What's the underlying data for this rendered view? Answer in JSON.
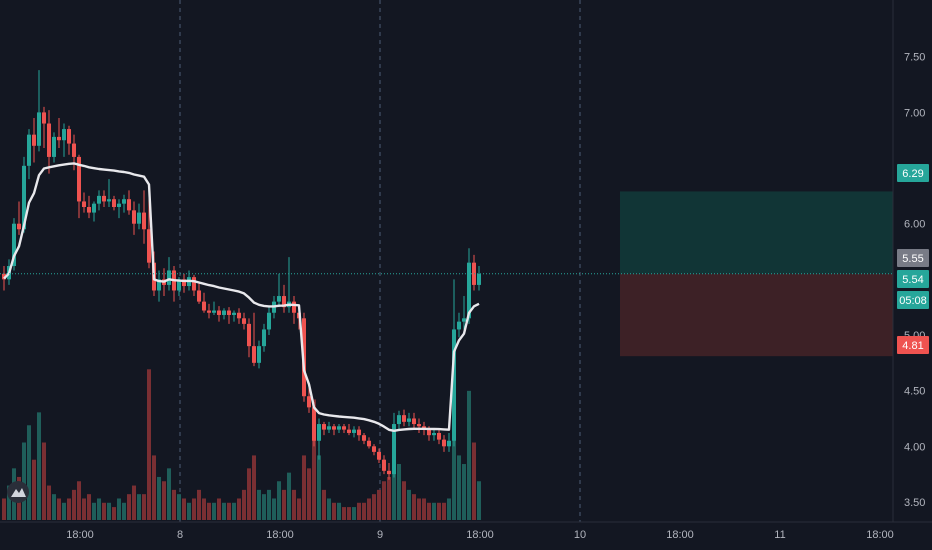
{
  "chart_data": {
    "type": "candlestick",
    "title": "",
    "xlabel": "",
    "ylabel": "",
    "ylim": [
      3.32,
      7.92
    ],
    "y_ticks": [
      "7.50",
      "7.00",
      "6.50",
      "6.00",
      "5.50",
      "5.00",
      "4.50",
      "4.00",
      "3.50"
    ],
    "x_ticks": [
      {
        "label": "18:00",
        "session": 0.5
      },
      {
        "label": "8",
        "session": 1
      },
      {
        "label": "18:00",
        "session": 1.5
      },
      {
        "label": "9",
        "session": 2
      },
      {
        "label": "18:00",
        "session": 2.5
      },
      {
        "label": "10",
        "session": 3
      },
      {
        "label": "18:00",
        "session": 3.5
      },
      {
        "label": "11",
        "session": 4
      },
      {
        "label": "18:00",
        "session": 4.5
      }
    ],
    "day_separators": [
      1,
      2,
      3
    ],
    "price_tags": [
      {
        "label": "6.29",
        "value": 6.29,
        "color": "#26a69a"
      },
      {
        "label": "5.55",
        "value": 5.55,
        "color": "#787b86"
      },
      {
        "label": "5.54",
        "value": 5.54,
        "color": "#26a69a"
      },
      {
        "label": "05:08",
        "value": 5.31,
        "color": "#26a69a"
      },
      {
        "label": "4.81",
        "value": 4.81,
        "color": "#ef5350"
      }
    ],
    "position": {
      "entry": 5.55,
      "target": 6.29,
      "stop": 4.81,
      "start_session": 3.2
    },
    "last_price": 5.55,
    "colors": {
      "up": "#26a69a",
      "down": "#ef5350",
      "vwap": "#e8e8ec",
      "background": "#131722",
      "grid": "#363a45",
      "last_price_line": "#26a69a"
    },
    "candles": [
      [
        5.55,
        5.62,
        5.4,
        5.5,
        10
      ],
      [
        5.5,
        5.68,
        5.45,
        5.62,
        16
      ],
      [
        5.62,
        6.05,
        5.58,
        6.0,
        24
      ],
      [
        6.0,
        6.2,
        5.9,
        5.95,
        20
      ],
      [
        5.95,
        6.6,
        5.92,
        6.52,
        36
      ],
      [
        6.52,
        6.85,
        6.4,
        6.8,
        44
      ],
      [
        6.8,
        6.95,
        6.55,
        6.7,
        28
      ],
      [
        6.7,
        7.38,
        6.65,
        7.0,
        50
      ],
      [
        7.0,
        7.05,
        6.68,
        6.9,
        36
      ],
      [
        6.9,
        7.02,
        6.45,
        6.6,
        16
      ],
      [
        6.6,
        6.82,
        6.55,
        6.78,
        12
      ],
      [
        6.78,
        6.95,
        6.68,
        6.75,
        10
      ],
      [
        6.75,
        6.9,
        6.6,
        6.85,
        8
      ],
      [
        6.85,
        6.88,
        6.62,
        6.72,
        10
      ],
      [
        6.72,
        6.8,
        6.48,
        6.6,
        14
      ],
      [
        6.6,
        6.62,
        6.05,
        6.2,
        18
      ],
      [
        6.2,
        6.28,
        6.1,
        6.15,
        10
      ],
      [
        6.15,
        6.25,
        6.05,
        6.1,
        12
      ],
      [
        6.1,
        6.2,
        6.02,
        6.18,
        8
      ],
      [
        6.18,
        6.3,
        6.12,
        6.25,
        10
      ],
      [
        6.25,
        6.3,
        6.15,
        6.2,
        8
      ],
      [
        6.2,
        6.4,
        6.15,
        6.22,
        8
      ],
      [
        6.22,
        6.25,
        6.12,
        6.15,
        6
      ],
      [
        6.15,
        6.22,
        6.05,
        6.18,
        10
      ],
      [
        6.18,
        6.26,
        6.1,
        6.22,
        8
      ],
      [
        6.22,
        6.3,
        6.08,
        6.12,
        12
      ],
      [
        6.12,
        6.2,
        5.9,
        6.0,
        16
      ],
      [
        6.0,
        6.18,
        5.95,
        6.1,
        12
      ],
      [
        6.1,
        6.3,
        5.82,
        5.95,
        12
      ],
      [
        5.95,
        6.35,
        5.6,
        5.65,
        70
      ],
      [
        5.65,
        5.75,
        5.35,
        5.4,
        30
      ],
      [
        5.4,
        5.58,
        5.3,
        5.5,
        20
      ],
      [
        5.5,
        5.6,
        5.35,
        5.45,
        18
      ],
      [
        5.45,
        5.7,
        5.4,
        5.58,
        24
      ],
      [
        5.58,
        5.62,
        5.3,
        5.4,
        14
      ],
      [
        5.4,
        5.52,
        5.35,
        5.5,
        12
      ],
      [
        5.5,
        5.55,
        5.38,
        5.44,
        10
      ],
      [
        5.44,
        5.58,
        5.4,
        5.52,
        8
      ],
      [
        5.52,
        5.54,
        5.35,
        5.4,
        10
      ],
      [
        5.4,
        5.48,
        5.28,
        5.3,
        14
      ],
      [
        5.3,
        5.38,
        5.2,
        5.22,
        10
      ],
      [
        5.22,
        5.28,
        5.15,
        5.2,
        8
      ],
      [
        5.2,
        5.3,
        5.18,
        5.22,
        8
      ],
      [
        5.22,
        5.26,
        5.12,
        5.18,
        10
      ],
      [
        5.18,
        5.24,
        5.14,
        5.22,
        8
      ],
      [
        5.22,
        5.25,
        5.1,
        5.18,
        8
      ],
      [
        5.18,
        5.22,
        5.12,
        5.2,
        8
      ],
      [
        5.2,
        5.24,
        5.1,
        5.15,
        10
      ],
      [
        5.15,
        5.2,
        5.05,
        5.1,
        14
      ],
      [
        5.1,
        5.15,
        4.8,
        4.9,
        24
      ],
      [
        4.9,
        5.2,
        4.72,
        4.75,
        30
      ],
      [
        4.75,
        4.95,
        4.7,
        4.9,
        14
      ],
      [
        4.9,
        5.1,
        4.85,
        5.05,
        12
      ],
      [
        5.05,
        5.25,
        5.0,
        5.2,
        14
      ],
      [
        5.2,
        5.35,
        5.15,
        5.3,
        10
      ],
      [
        5.3,
        5.55,
        5.25,
        5.35,
        18
      ],
      [
        5.35,
        5.45,
        5.2,
        5.25,
        14
      ],
      [
        5.25,
        5.7,
        5.2,
        5.3,
        22
      ],
      [
        5.3,
        5.35,
        5.1,
        5.2,
        14
      ],
      [
        5.2,
        5.25,
        5.05,
        5.15,
        10
      ],
      [
        5.15,
        5.2,
        4.4,
        4.45,
        30
      ],
      [
        4.45,
        4.55,
        4.3,
        4.35,
        24
      ],
      [
        4.35,
        4.4,
        4.0,
        4.05,
        56
      ],
      [
        4.05,
        4.25,
        3.88,
        4.2,
        30
      ],
      [
        4.2,
        4.22,
        4.1,
        4.15,
        14
      ],
      [
        4.15,
        4.22,
        4.12,
        4.18,
        10
      ],
      [
        4.18,
        4.2,
        4.1,
        4.15,
        8
      ],
      [
        4.15,
        4.2,
        4.12,
        4.18,
        8
      ],
      [
        4.18,
        4.2,
        4.12,
        4.15,
        6
      ],
      [
        4.15,
        4.2,
        4.1,
        4.12,
        6
      ],
      [
        4.12,
        4.18,
        4.08,
        4.15,
        6
      ],
      [
        4.15,
        4.18,
        4.05,
        4.1,
        8
      ],
      [
        4.1,
        4.12,
        4.02,
        4.05,
        8
      ],
      [
        4.05,
        4.08,
        3.98,
        4.0,
        10
      ],
      [
        4.0,
        4.02,
        3.92,
        3.95,
        12
      ],
      [
        3.95,
        3.98,
        3.85,
        3.88,
        14
      ],
      [
        3.88,
        3.92,
        3.75,
        3.78,
        18
      ],
      [
        3.78,
        3.85,
        3.7,
        3.75,
        20
      ],
      [
        3.75,
        4.3,
        3.72,
        4.2,
        40
      ],
      [
        4.2,
        4.32,
        4.15,
        4.28,
        26
      ],
      [
        4.28,
        4.33,
        4.18,
        4.22,
        18
      ],
      [
        4.22,
        4.3,
        4.18,
        4.25,
        14
      ],
      [
        4.25,
        4.3,
        4.15,
        4.2,
        12
      ],
      [
        4.2,
        4.25,
        4.12,
        4.18,
        10
      ],
      [
        4.18,
        4.22,
        4.1,
        4.15,
        10
      ],
      [
        4.15,
        4.18,
        4.05,
        4.1,
        8
      ],
      [
        4.1,
        4.15,
        4.05,
        4.12,
        8
      ],
      [
        4.12,
        4.15,
        4.02,
        4.06,
        8
      ],
      [
        4.06,
        4.1,
        3.95,
        4.0,
        8
      ],
      [
        4.0,
        4.12,
        3.95,
        4.05,
        10
      ],
      [
        4.05,
        5.5,
        4.0,
        5.05,
        44
      ],
      [
        5.05,
        5.2,
        4.98,
        5.12,
        30
      ],
      [
        5.12,
        5.35,
        5.05,
        5.15,
        26
      ],
      [
        5.15,
        5.78,
        5.1,
        5.65,
        60
      ],
      [
        5.65,
        5.72,
        5.4,
        5.45,
        36
      ],
      [
        5.45,
        5.62,
        5.4,
        5.55,
        18
      ]
    ]
  }
}
